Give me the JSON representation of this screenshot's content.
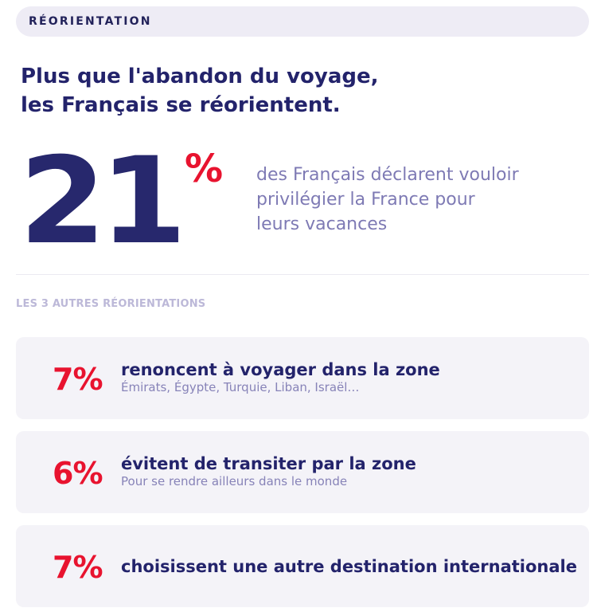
{
  "section_label": "RÉORIENTATION",
  "headline": {
    "line1": "Plus que l'abandon du voyage,",
    "line2": "les Français se réorientent."
  },
  "main_stat": {
    "number": "21",
    "percent_sign": "%",
    "text_line1": "des Français déclarent vouloir",
    "text_line2": "privilégier la France pour",
    "text_line3": "leurs vacances"
  },
  "subsection_title": "LES 3 AUTRES RÉORIENTATIONS",
  "cards": [
    {
      "value": "7%",
      "title": "renoncent à voyager dans la zone",
      "subtitle": "Émirats, Égypte, Turquie, Liban, Israël…"
    },
    {
      "value": "6%",
      "title": "évitent de transiter par la zone",
      "subtitle": "Pour se rendre ailleurs dans le monde"
    },
    {
      "value": "7%",
      "title": "choisissent une autre destination internationale"
    }
  ],
  "colors": {
    "navy": "#23236b",
    "red": "#e8132f",
    "lavender_text": "#7e7ab4",
    "card_bg": "#f4f3f8"
  }
}
